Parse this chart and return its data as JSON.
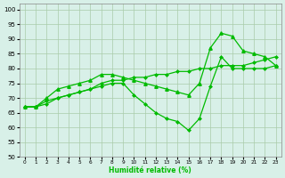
{
  "x": [
    0,
    1,
    2,
    3,
    4,
    5,
    6,
    7,
    8,
    9,
    10,
    11,
    12,
    13,
    14,
    15,
    16,
    17,
    18,
    19,
    20,
    21,
    22,
    23
  ],
  "line_top": [
    67,
    67,
    68,
    70,
    71,
    72,
    73,
    75,
    76,
    76,
    77,
    77,
    78,
    78,
    79,
    79,
    80,
    80,
    81,
    81,
    81,
    82,
    83,
    84
  ],
  "line_mid": [
    67,
    67,
    70,
    73,
    74,
    75,
    76,
    78,
    78,
    77,
    76,
    75,
    74,
    73,
    72,
    71,
    75,
    87,
    92,
    91,
    86,
    85,
    84,
    81
  ],
  "line_bot": [
    67,
    67,
    69,
    70,
    71,
    72,
    73,
    74,
    75,
    75,
    71,
    68,
    65,
    63,
    62,
    59,
    63,
    74,
    84,
    80,
    80,
    80,
    80,
    81
  ],
  "bg_color": "#d8f0e8",
  "line_color": "#00bb00",
  "grid_color": "#aaccaa",
  "xlabel": "Humidité relative (%)",
  "ylim": [
    50,
    102
  ],
  "xlim": [
    -0.5,
    23.5
  ],
  "yticks": [
    50,
    55,
    60,
    65,
    70,
    75,
    80,
    85,
    90,
    95,
    100
  ],
  "xticks": [
    0,
    1,
    2,
    3,
    4,
    5,
    6,
    7,
    8,
    9,
    10,
    11,
    12,
    13,
    14,
    15,
    16,
    17,
    18,
    19,
    20,
    21,
    22,
    23
  ]
}
